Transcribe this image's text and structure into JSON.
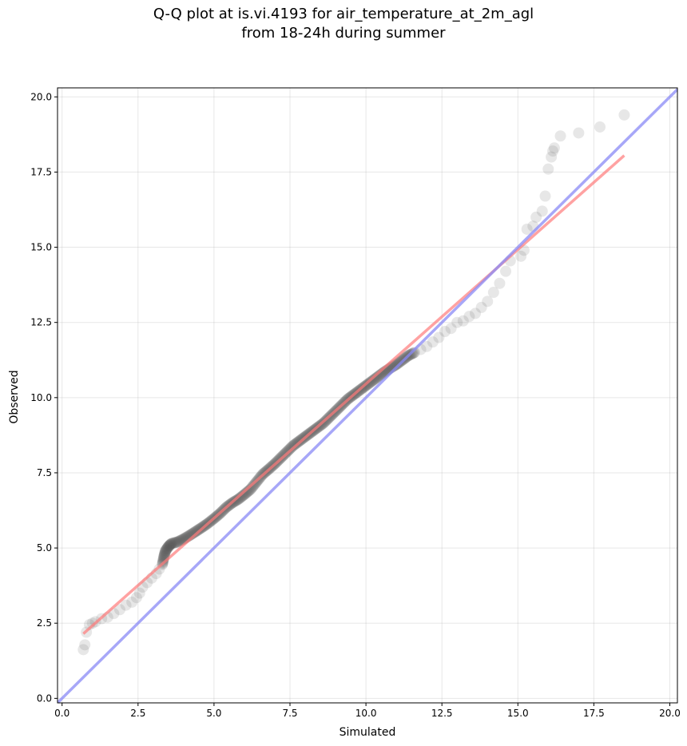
{
  "chart_data": {
    "type": "scatter",
    "title_line1": "Q-Q plot at is.vi.4193 for air_temperature_at_2m_agl",
    "title_line2": "from 18-24h during summer",
    "xlabel": "Simulated",
    "ylabel": "Observed",
    "xlim": [
      -0.15,
      20.25
    ],
    "ylim": [
      -0.15,
      20.3
    ],
    "xticks": [
      "0.0",
      "2.5",
      "5.0",
      "7.5",
      "10.0",
      "12.5",
      "15.0",
      "17.5",
      "20.0"
    ],
    "yticks": [
      "0.0",
      "2.5",
      "5.0",
      "7.5",
      "10.0",
      "12.5",
      "15.0",
      "17.5",
      "20.0"
    ],
    "xtick_values": [
      0,
      2.5,
      5,
      7.5,
      10,
      12.5,
      15,
      17.5,
      20
    ],
    "ytick_values": [
      0,
      2.5,
      5,
      7.5,
      10,
      12.5,
      15,
      17.5,
      20
    ],
    "grid": true,
    "colors": {
      "points": "#555555",
      "fit_line": "#ff7a7a",
      "identity_line": "#8a8af5"
    },
    "fit_line": {
      "x": [
        0.7,
        18.5
      ],
      "y": [
        2.15,
        18.05
      ]
    },
    "identity_line": {
      "x": [
        -0.15,
        20.25
      ],
      "y": [
        -0.15,
        20.25
      ]
    },
    "points": {
      "x": [
        0.7,
        0.75,
        0.8,
        0.9,
        1.0,
        1.1,
        1.3,
        1.5,
        1.7,
        1.9,
        2.1,
        2.3,
        2.45,
        2.55,
        2.65,
        2.8,
        2.95,
        3.1,
        3.2,
        3.3,
        3.35,
        3.4,
        3.5,
        3.6,
        3.8,
        4.0,
        4.2,
        4.4,
        4.6,
        4.8,
        5.0,
        5.2,
        5.4,
        5.6,
        5.8,
        6.0,
        6.2,
        6.4,
        6.6,
        6.8,
        7.0,
        7.2,
        7.4,
        7.6,
        7.8,
        8.0,
        8.2,
        8.4,
        8.6,
        8.8,
        9.0,
        9.2,
        9.4,
        9.6,
        9.8,
        10.0,
        10.2,
        10.4,
        10.6,
        10.8,
        11.0,
        11.2,
        11.4,
        11.6,
        11.8,
        12.0,
        12.2,
        12.4,
        12.6,
        12.8,
        13.0,
        13.2,
        13.4,
        13.6,
        13.8,
        14.0,
        14.2,
        14.4,
        14.6,
        14.75,
        15.1,
        15.2,
        15.3,
        15.5,
        15.6,
        15.8,
        15.9,
        16.0,
        16.1,
        16.15,
        16.2,
        16.4,
        17.0,
        17.7,
        18.5
      ],
      "y": [
        1.62,
        1.78,
        2.2,
        2.45,
        2.5,
        2.55,
        2.65,
        2.7,
        2.82,
        2.95,
        3.1,
        3.2,
        3.35,
        3.5,
        3.7,
        3.85,
        4.0,
        4.15,
        4.3,
        4.45,
        4.7,
        4.9,
        5.05,
        5.15,
        5.2,
        5.3,
        5.42,
        5.55,
        5.68,
        5.82,
        5.98,
        6.15,
        6.35,
        6.5,
        6.62,
        6.78,
        6.95,
        7.2,
        7.45,
        7.62,
        7.8,
        8.0,
        8.2,
        8.4,
        8.55,
        8.7,
        8.85,
        9.0,
        9.15,
        9.35,
        9.55,
        9.75,
        9.95,
        10.1,
        10.25,
        10.4,
        10.55,
        10.7,
        10.85,
        10.98,
        11.1,
        11.25,
        11.4,
        11.5,
        11.6,
        11.7,
        11.85,
        12.0,
        12.2,
        12.3,
        12.5,
        12.55,
        12.7,
        12.8,
        13.0,
        13.2,
        13.5,
        13.8,
        14.2,
        14.55,
        14.7,
        14.9,
        15.6,
        15.7,
        16.0,
        16.2,
        16.7,
        17.6,
        18.0,
        18.2,
        18.3,
        18.7,
        18.8,
        19.0,
        19.4
      ]
    }
  }
}
